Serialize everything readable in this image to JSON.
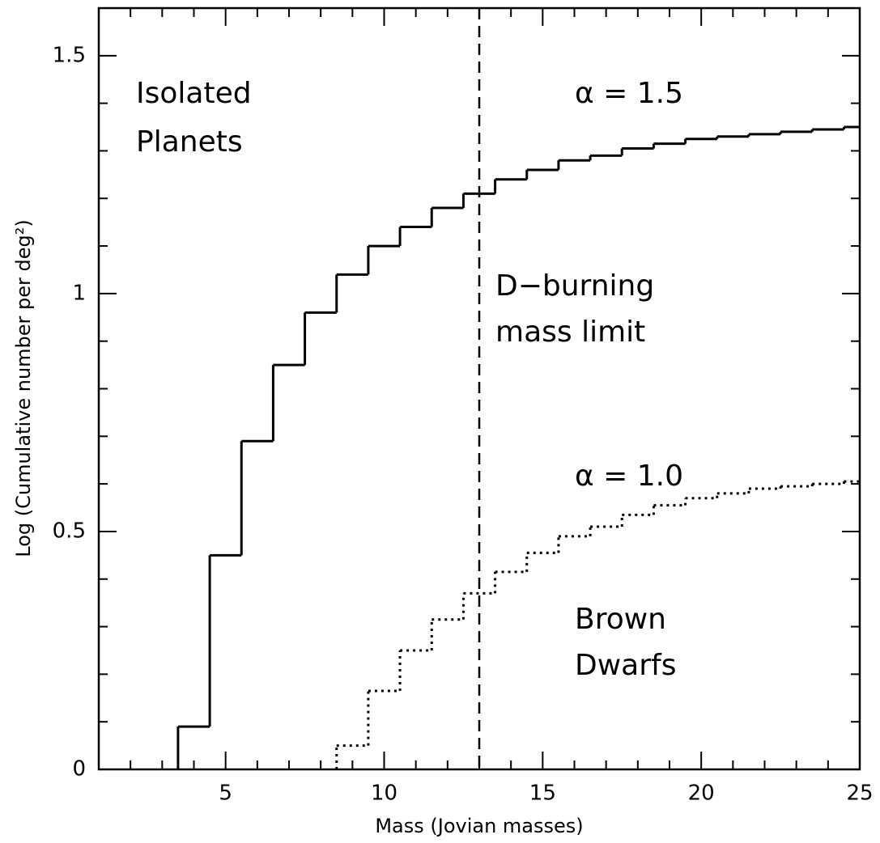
{
  "chart_data": {
    "type": "step",
    "xlabel": "Mass (Jovian masses)",
    "ylabel": "Log (Cumulative number per deg²)",
    "xlim": [
      1,
      25
    ],
    "ylim": [
      0,
      1.6
    ],
    "xticks": [
      5,
      10,
      15,
      20,
      25
    ],
    "yticks": [
      0,
      0.5,
      1,
      1.5
    ],
    "xticks_minor": [
      2,
      3,
      4,
      6,
      7,
      8,
      9,
      11,
      12,
      13,
      14,
      16,
      17,
      18,
      19,
      21,
      22,
      23,
      24
    ],
    "yticks_minor": [
      0.1,
      0.2,
      0.3,
      0.4,
      0.6,
      0.7,
      0.8,
      0.9,
      1.1,
      1.2,
      1.3,
      1.4,
      1.6
    ],
    "vline": 13,
    "series": [
      {
        "name": "α = 1.5",
        "style": "solid",
        "color": "#000000",
        "bins": [
          3.5,
          4.5,
          5.5,
          6.5,
          7.5,
          8.5,
          9.5,
          10.5,
          11.5,
          12.5,
          13.5,
          14.5,
          15.5,
          16.5,
          17.5,
          18.5,
          19.5,
          20.5,
          21.5,
          22.5,
          23.5,
          24.5,
          25
        ],
        "values": [
          0.09,
          0.45,
          0.69,
          0.85,
          0.96,
          1.04,
          1.1,
          1.14,
          1.18,
          1.21,
          1.24,
          1.26,
          1.28,
          1.29,
          1.305,
          1.315,
          1.325,
          1.33,
          1.335,
          1.34,
          1.345,
          1.35
        ]
      },
      {
        "name": "α = 1.0",
        "style": "dotted",
        "color": "#000000",
        "bins": [
          8.5,
          9.5,
          10.5,
          11.5,
          12.5,
          13.5,
          14.5,
          15.5,
          16.5,
          17.5,
          18.5,
          19.5,
          20.5,
          21.5,
          22.5,
          23.5,
          24.5,
          25
        ],
        "values": [
          0.05,
          0.165,
          0.25,
          0.315,
          0.37,
          0.415,
          0.455,
          0.49,
          0.51,
          0.535,
          0.555,
          0.57,
          0.58,
          0.59,
          0.595,
          0.6,
          0.605
        ]
      }
    ],
    "annotations": [
      {
        "lines": [
          "Isolated",
          "Planets"
        ]
      },
      {
        "lines": [
          "D−burning",
          "mass limit"
        ]
      },
      {
        "lines": [
          "Brown",
          "Dwarfs"
        ]
      }
    ]
  }
}
